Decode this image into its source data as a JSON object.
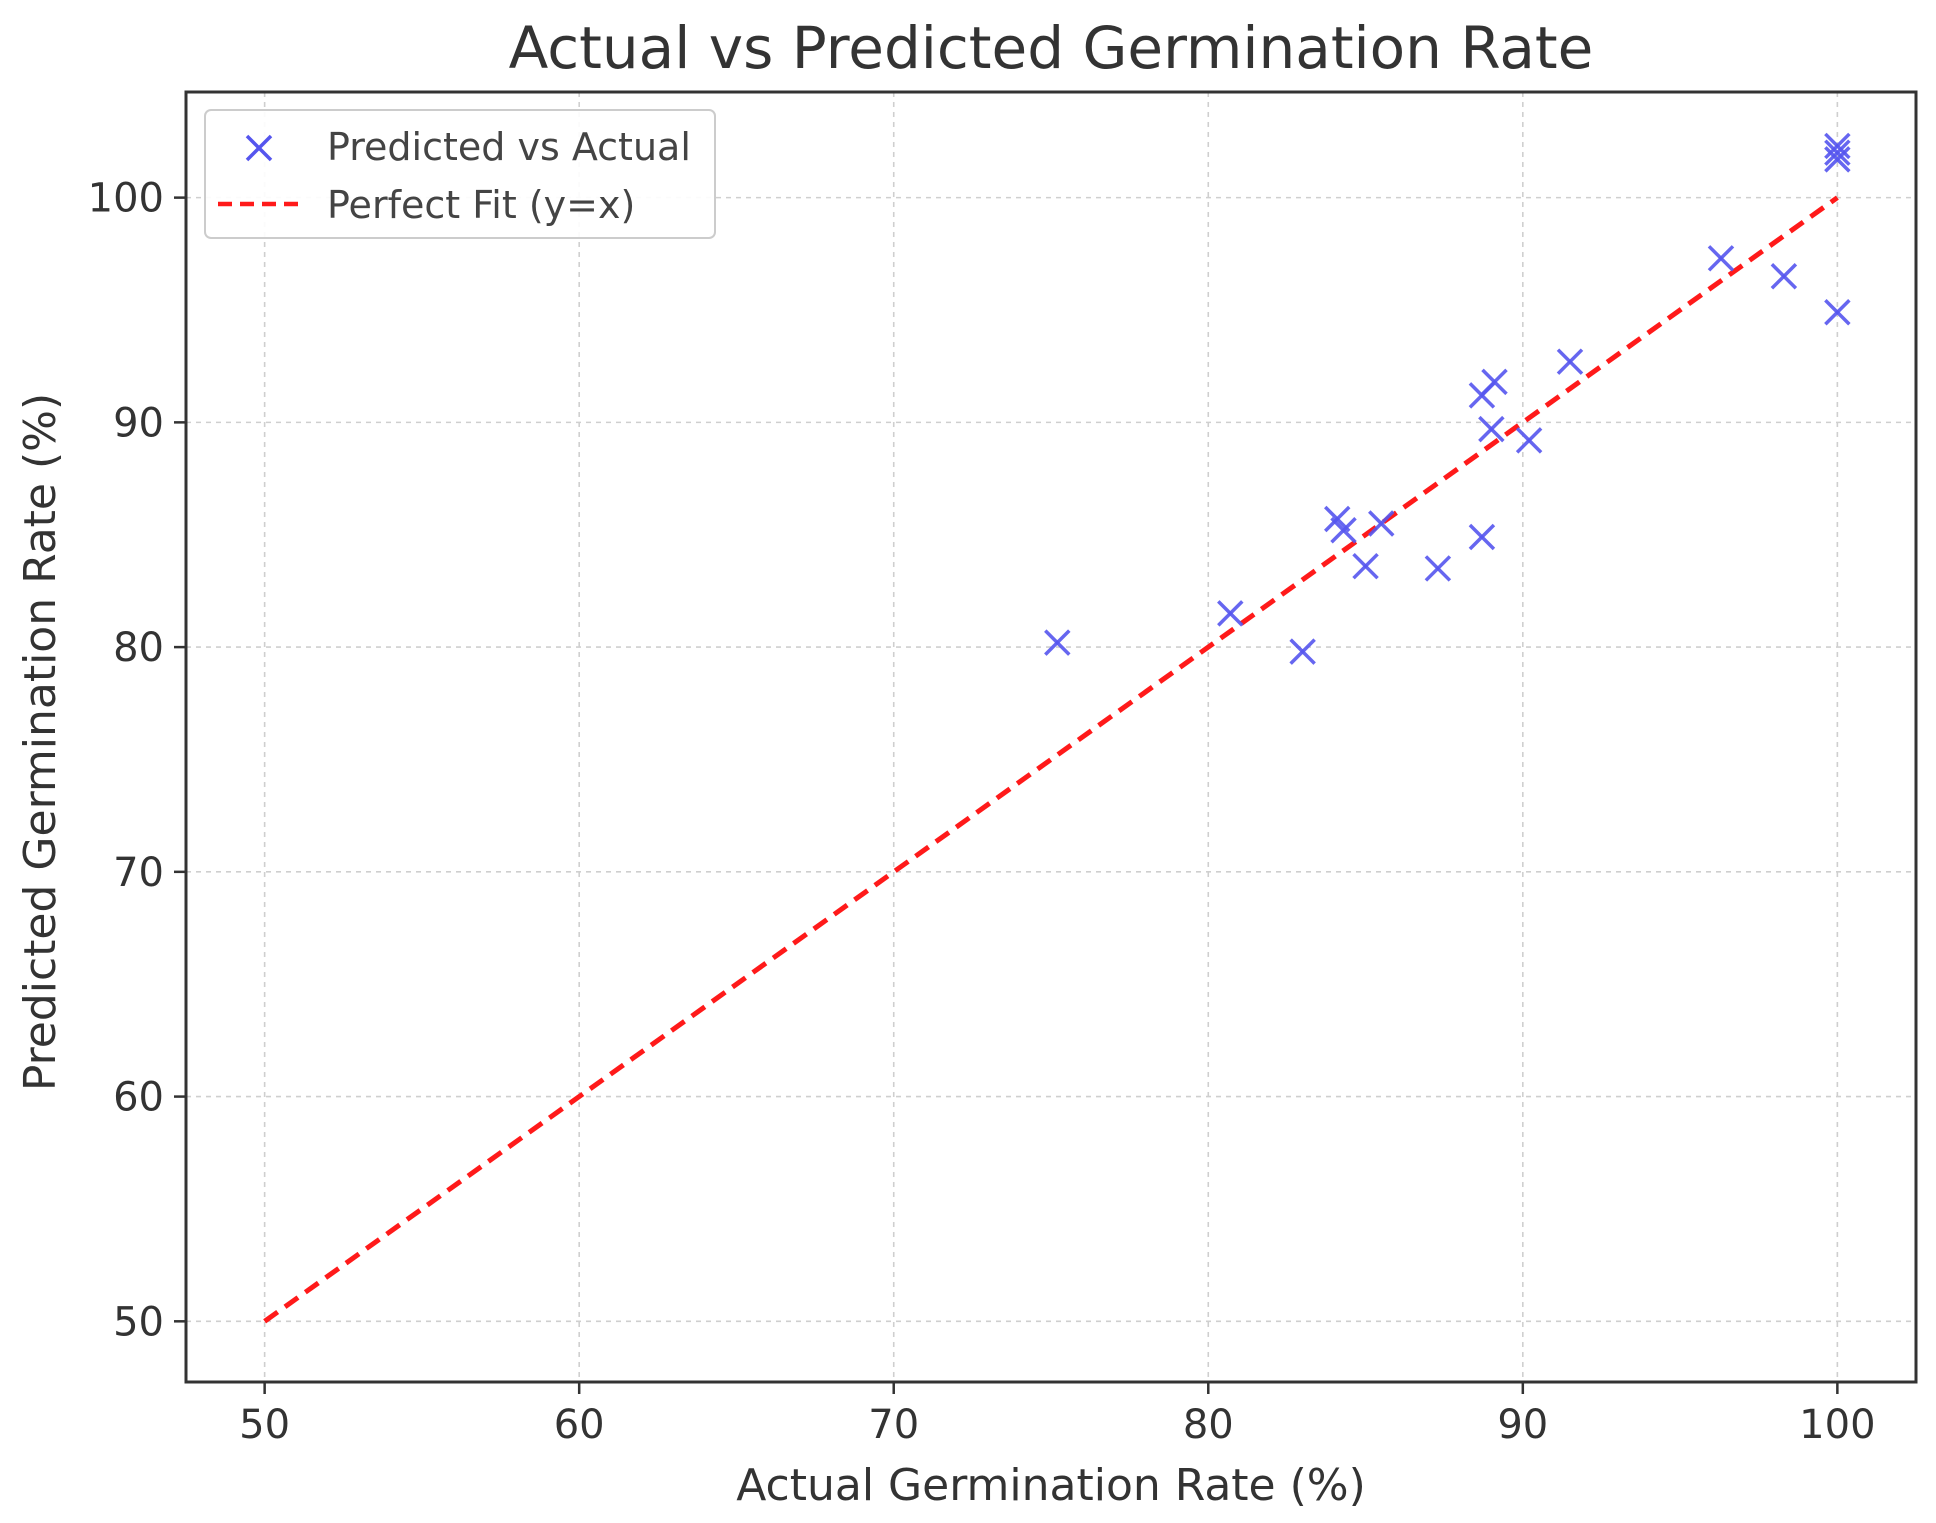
{
  "chart_data": {
    "type": "scatter",
    "title": "Actual vs Predicted Germination Rate",
    "xlabel": "Actual Germination Rate (%)",
    "ylabel": "Predicted Germination Rate (%)",
    "xlim": [
      47.5,
      102.5
    ],
    "ylim": [
      47.3,
      104.7
    ],
    "xticks": [
      50,
      60,
      70,
      80,
      90,
      100
    ],
    "yticks": [
      50,
      60,
      70,
      80,
      90,
      100
    ],
    "grid": true,
    "legend_position": "top-left",
    "series": [
      {
        "name": "Predicted vs Actual",
        "marker": "x",
        "color": "#5555ee",
        "points": [
          [
            75.2,
            80.2
          ],
          [
            80.7,
            81.5
          ],
          [
            83.0,
            79.8
          ],
          [
            84.1,
            85.7
          ],
          [
            84.3,
            85.2
          ],
          [
            85.0,
            83.6
          ],
          [
            85.5,
            85.5
          ],
          [
            87.3,
            83.5
          ],
          [
            88.7,
            84.9
          ],
          [
            88.7,
            91.2
          ],
          [
            89.1,
            91.8
          ],
          [
            89.0,
            89.7
          ],
          [
            90.2,
            89.2
          ],
          [
            91.5,
            92.7
          ],
          [
            96.3,
            97.3
          ],
          [
            98.3,
            96.5
          ],
          [
            100.0,
            102.3
          ],
          [
            100.0,
            102.0
          ],
          [
            100.0,
            101.7
          ],
          [
            100.0,
            94.9
          ]
        ]
      },
      {
        "name": "Perfect Fit (y=x)",
        "type": "line",
        "style": "dashed",
        "color": "#ff1a1a",
        "x": [
          50,
          100
        ],
        "y": [
          50,
          100
        ]
      }
    ]
  }
}
